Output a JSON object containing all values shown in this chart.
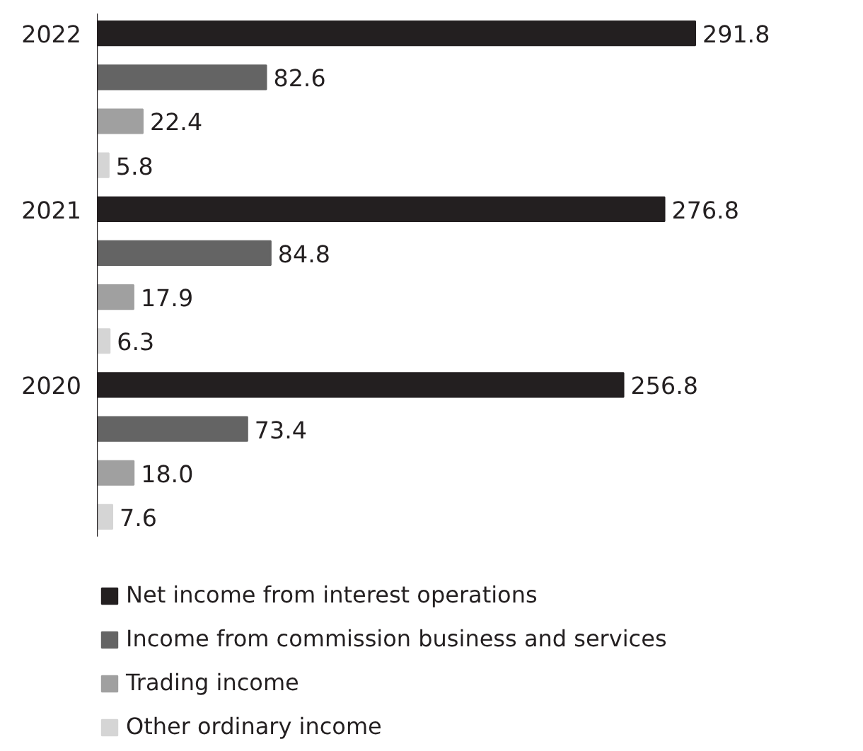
{
  "chart_data": {
    "type": "bar",
    "orientation": "horizontal",
    "categories": [
      "2022",
      "2021",
      "2020"
    ],
    "series": [
      {
        "name": "Net income from interest operations",
        "color": "#231f20",
        "values": [
          291.8,
          276.8,
          256.8
        ],
        "value_labels": [
          "291.8",
          "276.8",
          "256.8"
        ]
      },
      {
        "name": "Income from commission business and services",
        "color": "#646464",
        "values": [
          82.6,
          84.8,
          73.4
        ],
        "value_labels": [
          "82.6",
          "84.8",
          "73.4"
        ]
      },
      {
        "name": "Trading income",
        "color": "#a0a0a0",
        "values": [
          22.4,
          17.9,
          18.0
        ],
        "value_labels": [
          "22.4",
          "17.9",
          "18.0"
        ]
      },
      {
        "name": "Other ordinary income",
        "color": "#d5d5d5",
        "values": [
          5.8,
          6.3,
          7.6
        ],
        "value_labels": [
          "5.8",
          "6.3",
          "7.6"
        ]
      }
    ],
    "legend": "bottom"
  }
}
